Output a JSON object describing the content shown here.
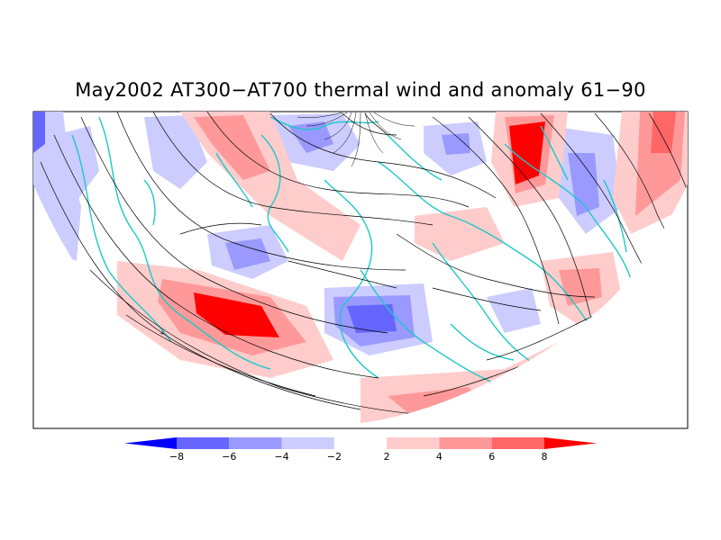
{
  "title": "May2002 AT300−AT700 thermal wind and anomaly 61−90",
  "colorbar": {
    "labels": [
      "−8",
      "−6",
      "−4",
      "−2",
      "2",
      "4",
      "6",
      "8"
    ],
    "colors": [
      "#0000ff",
      "#6666ff",
      "#9999ff",
      "#ccccff",
      "#ffffff",
      "#ffcccc",
      "#ff9999",
      "#ff6666",
      "#ff0000"
    ]
  },
  "map": {
    "projection": "north-polar-stereographic",
    "field": "thermal wind streamlines",
    "shading": "anomaly",
    "coastline_color": "#1ec8c8"
  }
}
